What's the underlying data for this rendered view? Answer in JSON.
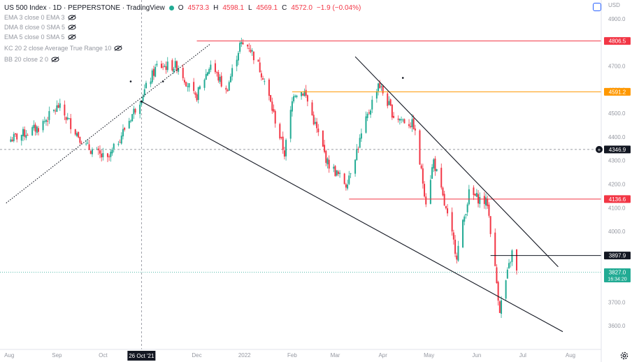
{
  "header": {
    "symbol": "US 500 Index · 1D · PEPPERSTONE · TradingView",
    "open_label": "O",
    "open": "4573.3",
    "high_label": "H",
    "high": "4598.1",
    "low_label": "L",
    "low": "4569.1",
    "close_label": "C",
    "close": "4572.0",
    "change": "−1.9 (−0.04%)",
    "currency": "USD"
  },
  "indicators": [
    "EMA 3 close 0 EMA 3",
    "DMA 8 close 0 SMA 5",
    "EMA 5 close 0 SMA 5",
    "KC 20 2 close Average True Range 10",
    "BB 20 close 2 0"
  ],
  "price_tags": [
    {
      "label": "4806.5",
      "color": "#f23645"
    },
    {
      "label": "4591.2",
      "color": "#ff9800"
    },
    {
      "label": "4346.9",
      "color": "#131722"
    },
    {
      "label": "4136.6",
      "color": "#f23645"
    },
    {
      "label": "3897.9",
      "color": "#131722"
    },
    {
      "label": "3827.0",
      "color": "#22ab94"
    }
  ],
  "countdown": "16:34:20",
  "crosshair_date": "26 Oct '21",
  "colors": {
    "up": "#22ab94",
    "down": "#f23645",
    "orange": "#ff9800",
    "text": "#131722",
    "muted": "#9598a1"
  },
  "chart_data": {
    "type": "candlestick",
    "y_ticks": [
      3600,
      3700,
      3800,
      3900,
      4000,
      4100,
      4200,
      4300,
      4400,
      4500,
      4600,
      4700,
      4800,
      4900
    ],
    "y_tick_labels": [
      "3600.0",
      "3700.0",
      "3800.0",
      "3900.0",
      "4000.0",
      "4100.0",
      "4200.0",
      "4300.0",
      "4400.0",
      "4500.0",
      "4600.0",
      "4700.0",
      "4800.0",
      "4900.0"
    ],
    "ylim": [
      3500,
      4980
    ],
    "x_ticks": [
      "Aug",
      "Sep",
      "Oct",
      "Nov",
      "Dec",
      "2022",
      "Feb",
      "Mar",
      "Apr",
      "May",
      "Jun",
      "Jul",
      "Aug"
    ],
    "x_tick_dates": [
      "2021-08-01",
      "2021-09-01",
      "2021-10-01",
      "2021-11-01",
      "2021-12-01",
      "2022-01-01",
      "2022-02-01",
      "2022-03-01",
      "2022-04-01",
      "2022-05-01",
      "2022-06-01",
      "2022-07-01",
      "2022-08-01"
    ],
    "horizontal_levels": [
      {
        "value": 4806.5,
        "from": "2021-12-01",
        "color": "#f23645"
      },
      {
        "value": 4591.2,
        "from": "2022-02-01",
        "color": "#ff9800"
      },
      {
        "value": 4136.6,
        "from": "2022-03-10",
        "color": "#f23645"
      },
      {
        "value": 3897.9,
        "from": "2022-06-10",
        "color": "#131722"
      }
    ],
    "trendlines": [
      {
        "from": [
          "2021-07-30",
          4120
        ],
        "to": [
          "2021-12-10",
          4795
        ],
        "style": "dotted"
      },
      {
        "from": [
          "2021-10-26",
          4550
        ],
        "to": [
          "2022-07-27",
          3575
        ],
        "style": "solid"
      },
      {
        "from": [
          "2022-03-14",
          4740
        ],
        "to": [
          "2022-07-24",
          3850
        ],
        "style": "solid"
      }
    ],
    "marker_dots": [
      [
        "2021-10-19",
        4635
      ],
      [
        "2021-11-09",
        4635
      ],
      [
        "2022-04-14",
        4650
      ]
    ],
    "anchors": [
      [
        "2021-08-02",
        4390
      ],
      [
        "2021-08-20",
        4440
      ],
      [
        "2021-09-02",
        4530
      ],
      [
        "2021-09-20",
        4360
      ],
      [
        "2021-10-04",
        4300
      ],
      [
        "2021-10-26",
        4570
      ],
      [
        "2021-11-05",
        4700
      ],
      [
        "2021-11-19",
        4700
      ],
      [
        "2021-11-30",
        4560
      ],
      [
        "2021-12-10",
        4710
      ],
      [
        "2021-12-20",
        4590
      ],
      [
        "2021-12-29",
        4790
      ],
      [
        "2022-01-04",
        4785
      ],
      [
        "2022-01-13",
        4660
      ],
      [
        "2022-01-27",
        4330
      ],
      [
        "2022-02-02",
        4590
      ],
      [
        "2022-02-09",
        4590
      ],
      [
        "2022-02-24",
        4290
      ],
      [
        "2022-03-08",
        4200
      ],
      [
        "2022-03-29",
        4630
      ],
      [
        "2022-04-08",
        4490
      ],
      [
        "2022-04-21",
        4450
      ],
      [
        "2022-04-29",
        4130
      ],
      [
        "2022-05-04",
        4300
      ],
      [
        "2022-05-19",
        3900
      ],
      [
        "2022-05-27",
        4160
      ],
      [
        "2022-06-08",
        4120
      ],
      [
        "2022-06-16",
        3670
      ],
      [
        "2022-06-24",
        3910
      ],
      [
        "2022-06-27",
        3827
      ]
    ]
  }
}
